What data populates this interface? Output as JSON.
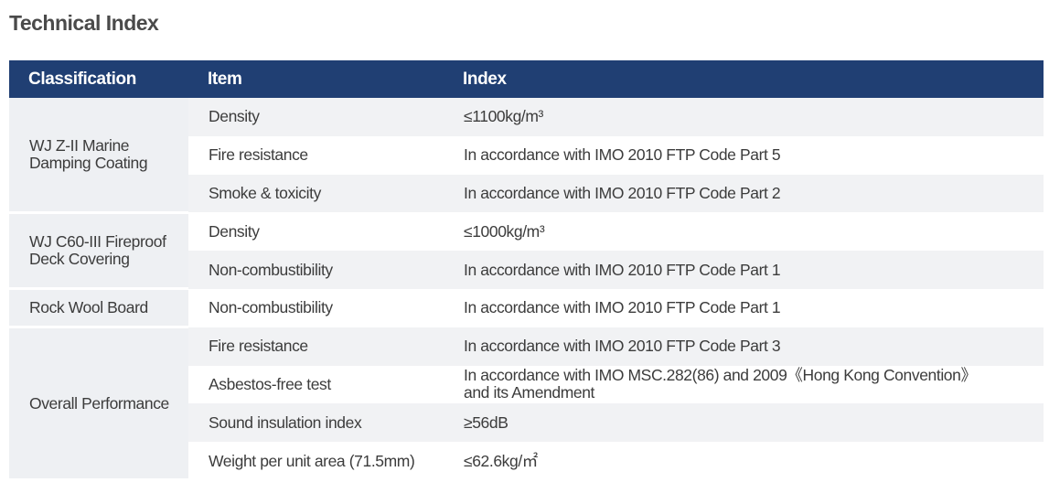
{
  "page": {
    "title": "Technical Index"
  },
  "table": {
    "headers": {
      "classification": "Classification",
      "item": "Item",
      "index": "Index"
    },
    "groups": [
      {
        "classification": "WJ Z-II Marine Damping Coating",
        "rows": [
          {
            "item": "Density",
            "index": "≤1100kg/m³"
          },
          {
            "item": "Fire resistance",
            "index": "In accordance with IMO 2010 FTP Code Part 5"
          },
          {
            "item": "Smoke & toxicity",
            "index": "In accordance with IMO 2010 FTP Code Part 2"
          }
        ]
      },
      {
        "classification": "WJ C60-III Fireproof Deck Covering",
        "rows": [
          {
            "item": "Density",
            "index": "≤1000kg/m³"
          },
          {
            "item": "Non-combustibility",
            "index": "In accordance with IMO 2010 FTP Code Part 1"
          }
        ]
      },
      {
        "classification": "Rock Wool Board",
        "rows": [
          {
            "item": "Non-combustibility",
            "index": "In accordance with IMO 2010 FTP Code Part 1"
          }
        ]
      },
      {
        "classification": "Overall Performance",
        "rows": [
          {
            "item": "Fire resistance",
            "index": "In accordance with IMO 2010 FTP Code Part 3"
          },
          {
            "item": "Asbestos-free test",
            "index": "In accordance with IMO MSC.282(86) and 2009《Hong Kong Convention》 and its Amendment"
          },
          {
            "item": "Sound insulation index",
            "index": "≥56dB"
          },
          {
            "item": "Weight per unit area (71.5mm)",
            "index": "≤62.6kg/㎡"
          }
        ]
      }
    ]
  }
}
